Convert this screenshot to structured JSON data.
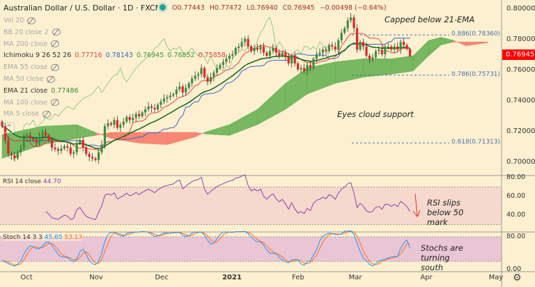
{
  "header": {
    "symbol": "Australian Dollar / U.S. Dollar · 1D · FXCM",
    "open": "O0.77443",
    "high": "H0.77472",
    "low": "L0.76940",
    "close": "C0.76945",
    "change": "−0.00498 (−0.64%)"
  },
  "legend": [
    {
      "label": "Vol 20",
      "hidden": true
    },
    {
      "label": "BB 20 close 2",
      "hidden": true
    },
    {
      "label": "MA 200 close",
      "hidden": true
    },
    {
      "label": "Ichimoku 9 26 52 26",
      "hidden": false,
      "values": [
        "0.77716",
        "0.78143",
        "0.76945",
        "0.76852",
        "0.75858"
      ],
      "colors": [
        "#e0443a",
        "#3a63c4",
        "#3a9a3a",
        "#3a9a3a",
        "#e0443a"
      ]
    },
    {
      "label": "EMA 55 close",
      "hidden": true
    },
    {
      "label": "MA 50 close",
      "hidden": true
    },
    {
      "label": "EMA 21 close",
      "hidden": false,
      "values": [
        "0.77486"
      ],
      "colors": [
        "#3a8a3a"
      ]
    },
    {
      "label": "MA 100 close",
      "hidden": true
    },
    {
      "label": "MA 5 close",
      "hidden": true
    }
  ],
  "price_axis": {
    "ticks": [
      "0.80000",
      "0.78000",
      "0.76000",
      "0.74000",
      "0.72000",
      "0.70000"
    ],
    "last_price": "0.76945",
    "last_price_color": "#ff0000"
  },
  "rsi": {
    "label": "RSI 14 close",
    "value": "44.70",
    "ticks": [
      "80.00",
      "60.00",
      "40.00"
    ],
    "color": "#8e3fb0"
  },
  "stoch": {
    "label": "Stoch 14 3 3",
    "k": "45.65",
    "d": "53.13",
    "ticks": [
      "80.00",
      "0.00"
    ],
    "k_color": "#2196f3",
    "d_color": "#ff6d1a"
  },
  "time_axis": [
    "Oct",
    "Nov",
    "Dec",
    "2021",
    "Feb",
    "Mar",
    "Apr",
    "May"
  ],
  "annotations": {
    "capped": "Capped below 21-EMA",
    "cloud": "Eyes cloud support",
    "rsi_note": "RSI slips below 50 mark",
    "stoch_note": "Stochs are turning south"
  },
  "fib_levels": [
    {
      "label": "0.886(0.78360)",
      "price": 0.7836
    },
    {
      "label": "0.786(0.75731)",
      "price": 0.75731
    },
    {
      "label": "0.618(0.71313)",
      "price": 0.71313
    }
  ],
  "colors": {
    "up": "#3d8f3d",
    "down": "#e32626",
    "cloud_bull": "#5fae4c",
    "cloud_bear": "#f47565",
    "background": "#fcf0d0"
  },
  "chart_data": {
    "type": "candlestick",
    "x_range": [
      "2020-09-21",
      "2021-03-23"
    ],
    "last_candle": {
      "open": 0.77443,
      "high": 0.77472,
      "low": 0.7694,
      "close": 0.76945
    },
    "ylim": [
      0.695,
      0.805
    ],
    "closes": [
      0.724,
      0.715,
      0.706,
      0.705,
      0.703,
      0.707,
      0.71,
      0.7165,
      0.718,
      0.716,
      0.715,
      0.713,
      0.717,
      0.72,
      0.718,
      0.715,
      0.71,
      0.709,
      0.708,
      0.7095,
      0.711,
      0.71,
      0.706,
      0.707,
      0.713,
      0.715,
      0.71,
      0.706,
      0.704,
      0.703,
      0.702,
      0.707,
      0.712,
      0.724,
      0.726,
      0.725,
      0.728,
      0.723,
      0.725,
      0.727,
      0.73,
      0.728,
      0.7295,
      0.732,
      0.7305,
      0.733,
      0.735,
      0.737,
      0.736,
      0.735,
      0.738,
      0.74,
      0.742,
      0.743,
      0.744,
      0.745,
      0.748,
      0.75,
      0.746,
      0.749,
      0.752,
      0.755,
      0.757,
      0.758,
      0.762,
      0.756,
      0.753,
      0.756,
      0.759,
      0.762,
      0.764,
      0.766,
      0.768,
      0.77,
      0.771,
      0.775,
      0.776,
      0.779,
      0.781,
      0.776,
      0.773,
      0.775,
      0.774,
      0.776,
      0.772,
      0.77,
      0.773,
      0.775,
      0.772,
      0.77,
      0.772,
      0.769,
      0.765,
      0.77,
      0.765,
      0.761,
      0.762,
      0.76,
      0.764,
      0.762,
      0.768,
      0.771,
      0.772,
      0.774,
      0.773,
      0.777,
      0.776,
      0.774,
      0.78,
      0.785,
      0.788,
      0.793,
      0.795,
      0.788,
      0.774,
      0.779,
      0.776,
      0.77,
      0.768,
      0.769,
      0.773,
      0.774,
      0.771,
      0.776,
      0.776,
      0.774,
      0.776,
      0.774,
      0.779,
      0.777,
      0.7744,
      0.76945
    ],
    "cloud": [
      [
        0,
        0.7185,
        0.703
      ],
      [
        13,
        0.724,
        0.712
      ],
      [
        24,
        0.725,
        0.716
      ],
      [
        30,
        0.72,
        0.718
      ],
      [
        35,
        0.716,
        0.72
      ],
      [
        44,
        0.713,
        0.72
      ],
      [
        53,
        0.712,
        0.72
      ],
      [
        62,
        0.717,
        0.72
      ],
      [
        65,
        0.72,
        0.719
      ],
      [
        73,
        0.725,
        0.718
      ],
      [
        82,
        0.735,
        0.725
      ],
      [
        91,
        0.752,
        0.735
      ],
      [
        98,
        0.762,
        0.745
      ],
      [
        107,
        0.766,
        0.752
      ],
      [
        116,
        0.768,
        0.756
      ],
      [
        125,
        0.768,
        0.758
      ],
      [
        132,
        0.77,
        0.76
      ],
      [
        137,
        0.78,
        0.77
      ],
      [
        141,
        0.782,
        0.777
      ],
      [
        145,
        0.78,
        0.779
      ],
      [
        149,
        0.7765,
        0.779
      ],
      [
        156,
        0.7785,
        0.779
      ]
    ]
  }
}
